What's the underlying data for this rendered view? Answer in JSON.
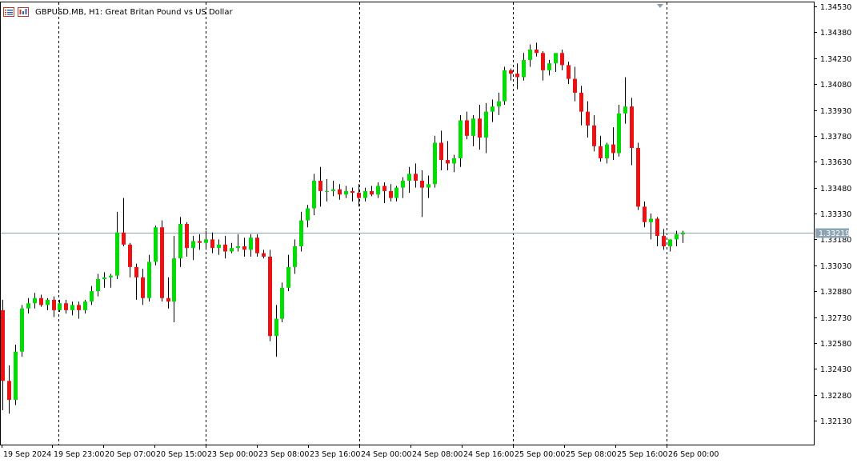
{
  "window": {
    "symbol": "GBPUSD.MB",
    "timeframe": "H1",
    "description": "Great Britan Pound vs US Dollar",
    "title": "GBPUSD.MB, H1:  Great Britan Pound vs US Dollar",
    "header_icons": [
      "chart-list-icon",
      "chart-bars-icon"
    ]
  },
  "colors": {
    "background": "#ffffff",
    "bull": "#00dd00",
    "bear": "#ee1111",
    "wick": "#000000",
    "grid": "#000000",
    "bid_line": "#8fa4b3",
    "price_label_bg": "#8fa4b3",
    "price_label_fg": "#ffffff"
  },
  "chart_data": {
    "type": "candlestick",
    "ylim": [
      1.3206,
      1.3455
    ],
    "price_ticks": [
      "1.34530",
      "1.34380",
      "1.34230",
      "1.34080",
      "1.33930",
      "1.33780",
      "1.33630",
      "1.33480",
      "1.33330",
      "1.33180",
      "1.33030",
      "1.32880",
      "1.32730",
      "1.32580",
      "1.32430",
      "1.32280",
      "1.32130"
    ],
    "time_labels": [
      "19 Sep 2024",
      "19 Sep 23:00",
      "20 Sep 07:00",
      "20 Sep 15:00",
      "23 Sep 00:00",
      "23 Sep 08:00",
      "23 Sep 16:00",
      "24 Sep 00:00",
      "24 Sep 08:00",
      "24 Sep 16:00",
      "25 Sep 00:00",
      "25 Sep 08:00",
      "25 Sep 16:00",
      "26 Sep 00:00"
    ],
    "day_separators_after_bar": [
      8,
      32,
      56,
      80,
      104
    ],
    "current_price": "1.33219",
    "candles": [
      [
        1.3277,
        1.3283,
        1.3219,
        1.3236
      ],
      [
        1.3236,
        1.3245,
        1.3217,
        1.3225
      ],
      [
        1.3225,
        1.3257,
        1.3222,
        1.3253
      ],
      [
        1.3253,
        1.328,
        1.325,
        1.3278
      ],
      [
        1.3278,
        1.3284,
        1.3275,
        1.3281
      ],
      [
        1.3281,
        1.3287,
        1.3278,
        1.3284
      ],
      [
        1.3284,
        1.3286,
        1.3279,
        1.328
      ],
      [
        1.328,
        1.3284,
        1.3277,
        1.3283
      ],
      [
        1.3283,
        1.3285,
        1.3273,
        1.3277
      ],
      [
        1.3277,
        1.3283,
        1.3276,
        1.3281
      ],
      [
        1.3281,
        1.3283,
        1.3275,
        1.3277
      ],
      [
        1.3277,
        1.3282,
        1.3274,
        1.328
      ],
      [
        1.328,
        1.3282,
        1.3272,
        1.3277
      ],
      [
        1.3277,
        1.3283,
        1.3275,
        1.3282
      ],
      [
        1.3282,
        1.3291,
        1.328,
        1.3288
      ],
      [
        1.3288,
        1.3298,
        1.3285,
        1.3295
      ],
      [
        1.3295,
        1.3299,
        1.329,
        1.3296
      ],
      [
        1.3296,
        1.3298,
        1.329,
        1.3297
      ],
      [
        1.3297,
        1.3334,
        1.3295,
        1.3322
      ],
      [
        1.3322,
        1.3342,
        1.3314,
        1.3315
      ],
      [
        1.3315,
        1.3316,
        1.3296,
        1.3302
      ],
      [
        1.3302,
        1.3304,
        1.3283,
        1.3296
      ],
      [
        1.3296,
        1.3301,
        1.328,
        1.3284
      ],
      [
        1.3284,
        1.3309,
        1.3282,
        1.3305
      ],
      [
        1.3305,
        1.3326,
        1.3303,
        1.3325
      ],
      [
        1.3325,
        1.3329,
        1.3282,
        1.3284
      ],
      [
        1.3284,
        1.3296,
        1.3278,
        1.3282
      ],
      [
        1.3282,
        1.332,
        1.327,
        1.3307
      ],
      [
        1.3307,
        1.3331,
        1.3302,
        1.3327
      ],
      [
        1.3327,
        1.3328,
        1.3308,
        1.3313
      ],
      [
        1.3313,
        1.332,
        1.3306,
        1.3317
      ],
      [
        1.3317,
        1.3321,
        1.3312,
        1.3316
      ],
      [
        1.3316,
        1.3323,
        1.3312,
        1.3318
      ],
      [
        1.3318,
        1.3322,
        1.331,
        1.3313
      ],
      [
        1.3313,
        1.3318,
        1.3309,
        1.3315
      ],
      [
        1.3315,
        1.332,
        1.3307,
        1.3311
      ],
      [
        1.3311,
        1.3316,
        1.331,
        1.3313
      ],
      [
        1.3313,
        1.3321,
        1.3311,
        1.3314
      ],
      [
        1.3314,
        1.3319,
        1.3308,
        1.3312
      ],
      [
        1.3312,
        1.3321,
        1.3308,
        1.3319
      ],
      [
        1.3319,
        1.3321,
        1.3308,
        1.331
      ],
      [
        1.331,
        1.3312,
        1.3307,
        1.3308
      ],
      [
        1.3308,
        1.3312,
        1.3259,
        1.3262
      ],
      [
        1.3262,
        1.328,
        1.325,
        1.3272
      ],
      [
        1.3272,
        1.3293,
        1.327,
        1.329
      ],
      [
        1.329,
        1.3309,
        1.3288,
        1.3302
      ],
      [
        1.3302,
        1.3318,
        1.3298,
        1.3314
      ],
      [
        1.3314,
        1.3334,
        1.3311,
        1.3329
      ],
      [
        1.3329,
        1.3338,
        1.3325,
        1.3336
      ],
      [
        1.3336,
        1.3356,
        1.3332,
        1.3352
      ],
      [
        1.3352,
        1.336,
        1.3337,
        1.3346
      ],
      [
        1.3346,
        1.3353,
        1.334,
        1.3346
      ],
      [
        1.3346,
        1.3352,
        1.3343,
        1.3347
      ],
      [
        1.3347,
        1.335,
        1.3341,
        1.3344
      ],
      [
        1.3344,
        1.3349,
        1.3342,
        1.3346
      ],
      [
        1.3346,
        1.3348,
        1.334,
        1.3345
      ],
      [
        1.3345,
        1.335,
        1.3337,
        1.3342
      ],
      [
        1.3342,
        1.3348,
        1.334,
        1.3346
      ],
      [
        1.3346,
        1.3349,
        1.3343,
        1.3344
      ],
      [
        1.3344,
        1.3351,
        1.3342,
        1.3349
      ],
      [
        1.3349,
        1.3351,
        1.3339,
        1.3346
      ],
      [
        1.3346,
        1.335,
        1.334,
        1.3342
      ],
      [
        1.3342,
        1.3349,
        1.334,
        1.3348
      ],
      [
        1.3348,
        1.3354,
        1.3342,
        1.3352
      ],
      [
        1.3352,
        1.336,
        1.3345,
        1.3356
      ],
      [
        1.3356,
        1.3362,
        1.3348,
        1.3352
      ],
      [
        1.3352,
        1.3358,
        1.3331,
        1.3348
      ],
      [
        1.3348,
        1.3355,
        1.3342,
        1.335
      ],
      [
        1.335,
        1.3378,
        1.3348,
        1.3374
      ],
      [
        1.3374,
        1.3381,
        1.3358,
        1.3364
      ],
      [
        1.3364,
        1.3375,
        1.3358,
        1.3362
      ],
      [
        1.3362,
        1.3367,
        1.3357,
        1.3365
      ],
      [
        1.3365,
        1.339,
        1.336,
        1.3387
      ],
      [
        1.3387,
        1.3392,
        1.3376,
        1.3378
      ],
      [
        1.3378,
        1.339,
        1.3372,
        1.3388
      ],
      [
        1.3388,
        1.3396,
        1.337,
        1.3377
      ],
      [
        1.3377,
        1.3397,
        1.3368,
        1.3392
      ],
      [
        1.3392,
        1.3399,
        1.3386,
        1.3395
      ],
      [
        1.3395,
        1.3403,
        1.339,
        1.3398
      ],
      [
        1.3398,
        1.3418,
        1.3396,
        1.3416
      ],
      [
        1.3416,
        1.3417,
        1.341,
        1.3414
      ],
      [
        1.3414,
        1.342,
        1.3405,
        1.3412
      ],
      [
        1.3412,
        1.3426,
        1.341,
        1.3422
      ],
      [
        1.3422,
        1.3431,
        1.3418,
        1.3428
      ],
      [
        1.3428,
        1.3432,
        1.3424,
        1.3426
      ],
      [
        1.3426,
        1.3427,
        1.341,
        1.3416
      ],
      [
        1.3416,
        1.3422,
        1.3413,
        1.342
      ],
      [
        1.342,
        1.3425,
        1.3415,
        1.3426
      ],
      [
        1.3426,
        1.3428,
        1.3416,
        1.3419
      ],
      [
        1.3419,
        1.3421,
        1.3408,
        1.3411
      ],
      [
        1.3411,
        1.3418,
        1.3398,
        1.3403
      ],
      [
        1.3403,
        1.3407,
        1.3384,
        1.3392
      ],
      [
        1.3392,
        1.3398,
        1.3377,
        1.3384
      ],
      [
        1.3384,
        1.339,
        1.3369,
        1.3372
      ],
      [
        1.3372,
        1.3378,
        1.3363,
        1.3365
      ],
      [
        1.3365,
        1.3374,
        1.3362,
        1.3373
      ],
      [
        1.3373,
        1.3383,
        1.3364,
        1.3368
      ],
      [
        1.3368,
        1.3396,
        1.3366,
        1.3391
      ],
      [
        1.3391,
        1.3412,
        1.3385,
        1.3395
      ],
      [
        1.3395,
        1.34,
        1.3361,
        1.3371
      ],
      [
        1.3371,
        1.3374,
        1.3335,
        1.3337
      ],
      [
        1.3337,
        1.334,
        1.3325,
        1.3328
      ],
      [
        1.3328,
        1.3333,
        1.3318,
        1.333
      ],
      [
        1.333,
        1.3331,
        1.3314,
        1.332
      ],
      [
        1.332,
        1.3324,
        1.3312,
        1.3314
      ],
      [
        1.3314,
        1.3318,
        1.3311,
        1.3318
      ],
      [
        1.3318,
        1.3323,
        1.3314,
        1.3321
      ],
      [
        1.3321,
        1.3323,
        1.3316,
        1.3322
      ]
    ]
  }
}
